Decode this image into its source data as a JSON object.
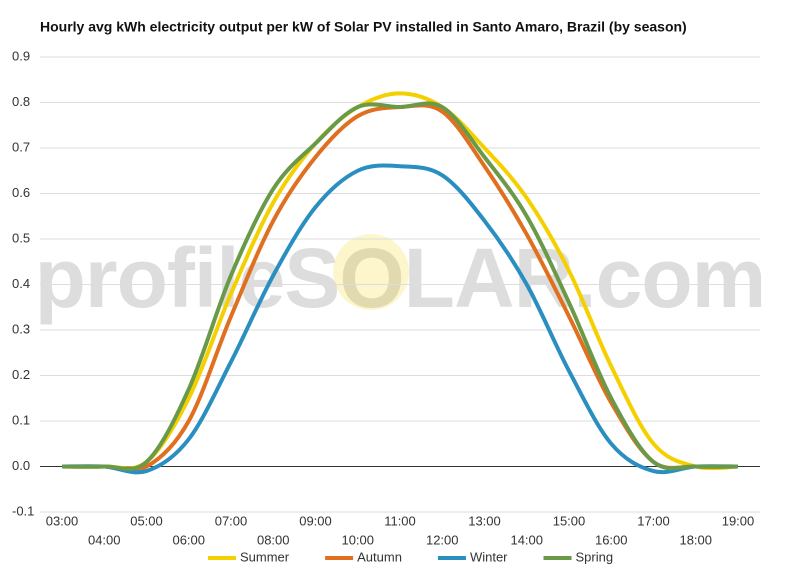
{
  "chart_data": {
    "type": "line",
    "title": "Hourly avg kWh electricity output per kW of Solar PV installed in Santo Amaro, Brazil (by season)",
    "watermark": "profileSOLAR.com",
    "categories": [
      "03:00",
      "04:00",
      "05:00",
      "06:00",
      "07:00",
      "08:00",
      "09:00",
      "10:00",
      "11:00",
      "12:00",
      "13:00",
      "14:00",
      "15:00",
      "16:00",
      "17:00",
      "18:00",
      "19:00"
    ],
    "series": [
      {
        "name": "Summer",
        "color": "#f5d000",
        "values": [
          0,
          0,
          0.01,
          0.15,
          0.38,
          0.58,
          0.71,
          0.79,
          0.82,
          0.79,
          0.7,
          0.59,
          0.43,
          0.22,
          0.05,
          0,
          0
        ]
      },
      {
        "name": "Autumn",
        "color": "#e07020",
        "values": [
          0,
          0,
          0,
          0.1,
          0.33,
          0.54,
          0.68,
          0.77,
          0.79,
          0.78,
          0.66,
          0.51,
          0.33,
          0.14,
          0.01,
          0,
          0
        ]
      },
      {
        "name": "Winter",
        "color": "#2a8fc0",
        "values": [
          0,
          0,
          -0.01,
          0.06,
          0.23,
          0.42,
          0.57,
          0.65,
          0.66,
          0.64,
          0.54,
          0.4,
          0.21,
          0.05,
          -0.01,
          0,
          0
        ]
      },
      {
        "name": "Spring",
        "color": "#6a9a48",
        "values": [
          0,
          0,
          0.01,
          0.17,
          0.42,
          0.61,
          0.71,
          0.79,
          0.79,
          0.79,
          0.68,
          0.55,
          0.36,
          0.15,
          0.01,
          0,
          0
        ]
      }
    ],
    "ylim": [
      -0.1,
      0.9
    ],
    "yticks": [
      -0.1,
      {
        "value": 0,
        "label": "0.0"
      },
      0.1,
      0.2,
      0.3,
      0.4,
      0.5,
      0.6,
      0.7,
      0.8,
      0.9
    ],
    "grid": true
  }
}
